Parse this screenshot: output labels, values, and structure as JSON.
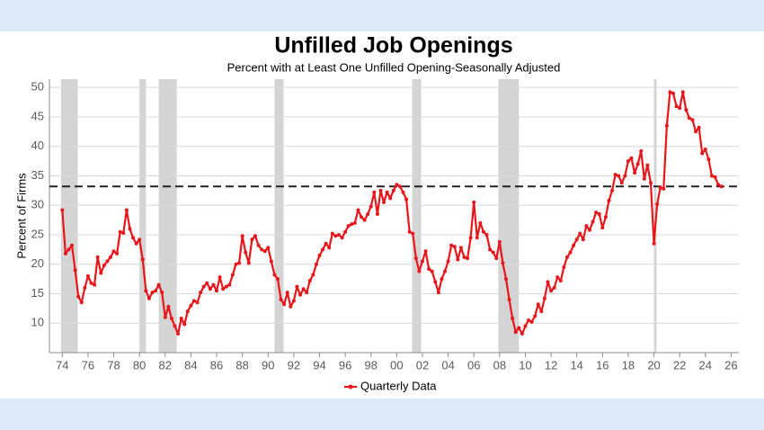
{
  "chart_data": {
    "type": "line",
    "title": "Unfilled Job Openings",
    "subtitle": "Percent with at Least One Unfilled Opening-Seasonally Adjusted",
    "y_label": "Percent of Firms",
    "x": [
      1974,
      1974.25,
      1974.5,
      1974.75,
      1975,
      1975.25,
      1975.5,
      1975.75,
      1976,
      1976.25,
      1976.5,
      1976.75,
      1977,
      1977.25,
      1977.5,
      1977.75,
      1978,
      1978.25,
      1978.5,
      1978.75,
      1979,
      1979.25,
      1979.5,
      1979.75,
      1980,
      1980.25,
      1980.5,
      1980.75,
      1981,
      1981.25,
      1981.5,
      1981.75,
      1982,
      1982.25,
      1982.5,
      1982.75,
      1983,
      1983.25,
      1983.5,
      1983.75,
      1984,
      1984.25,
      1984.5,
      1984.75,
      1985,
      1985.25,
      1985.5,
      1985.75,
      1986,
      1986.25,
      1986.5,
      1986.75,
      1987,
      1987.25,
      1987.5,
      1987.75,
      1988,
      1988.25,
      1988.5,
      1988.75,
      1989,
      1989.25,
      1989.5,
      1989.75,
      1990,
      1990.25,
      1990.5,
      1990.75,
      1991,
      1991.25,
      1991.5,
      1991.75,
      1992,
      1992.25,
      1992.5,
      1992.75,
      1993,
      1993.25,
      1993.5,
      1993.75,
      1994,
      1994.25,
      1994.5,
      1994.75,
      1995,
      1995.25,
      1995.5,
      1995.75,
      1996,
      1996.25,
      1996.5,
      1996.75,
      1997,
      1997.25,
      1997.5,
      1997.75,
      1998,
      1998.25,
      1998.5,
      1998.75,
      1999,
      1999.25,
      1999.5,
      1999.75,
      2000,
      2000.25,
      2000.5,
      2000.75,
      2001,
      2001.25,
      2001.5,
      2001.75,
      2002,
      2002.25,
      2002.5,
      2002.75,
      2003,
      2003.25,
      2003.5,
      2003.75,
      2004,
      2004.25,
      2004.5,
      2004.75,
      2005,
      2005.25,
      2005.5,
      2005.75,
      2006,
      2006.25,
      2006.5,
      2006.75,
      2007,
      2007.25,
      2007.5,
      2007.75,
      2008,
      2008.25,
      2008.5,
      2008.75,
      2009,
      2009.25,
      2009.5,
      2009.75,
      2010,
      2010.25,
      2010.5,
      2010.75,
      2011,
      2011.25,
      2011.5,
      2011.75,
      2012,
      2012.25,
      2012.5,
      2012.75,
      2013,
      2013.25,
      2013.5,
      2013.75,
      2014,
      2014.25,
      2014.5,
      2014.75,
      2015,
      2015.25,
      2015.5,
      2015.75,
      2016,
      2016.25,
      2016.5,
      2016.75,
      2017,
      2017.25,
      2017.5,
      2017.75,
      2018,
      2018.25,
      2018.5,
      2018.75,
      2019,
      2019.25,
      2019.5,
      2019.75,
      2020,
      2020.25,
      2020.5,
      2020.75,
      2021,
      2021.25,
      2021.5,
      2021.75,
      2022,
      2022.25,
      2022.5,
      2022.75,
      2023,
      2023.25,
      2023.5,
      2023.75,
      2024,
      2024.25,
      2024.5,
      2024.75,
      2025,
      2025.25
    ],
    "series": [
      {
        "name": "Quarterly Data",
        "color": "#e8161b",
        "values": [
          29.2,
          21.8,
          22.5,
          23.2,
          19,
          14.5,
          13.5,
          16,
          18,
          16.8,
          16.5,
          21.2,
          18.5,
          19.8,
          20.5,
          21.2,
          22.2,
          21.8,
          25.5,
          25.3,
          29.2,
          26,
          24.5,
          23.5,
          24.2,
          20.8,
          15.5,
          14.2,
          15.2,
          15.5,
          16.5,
          15.2,
          11,
          12.8,
          10.8,
          9.5,
          8.2,
          10.8,
          9.8,
          12,
          13,
          13.8,
          13.5,
          15.2,
          16.2,
          16.8,
          15.8,
          16.5,
          15.5,
          17.8,
          15.8,
          16.2,
          16.5,
          18.2,
          20,
          20.2,
          24.8,
          22,
          20.2,
          24.2,
          24.8,
          23.2,
          22.5,
          22.2,
          22.8,
          20.5,
          18.2,
          17.5,
          14,
          13.2,
          15.2,
          12.8,
          13.8,
          16.2,
          14.8,
          15.8,
          15.2,
          17.2,
          18.2,
          20,
          21.5,
          22.5,
          23.5,
          22.8,
          25.2,
          24.8,
          25,
          24.5,
          25.5,
          26.5,
          26.8,
          27,
          29.2,
          28,
          27.5,
          28.5,
          29.8,
          32.2,
          28.5,
          32.5,
          30.5,
          32.2,
          31.2,
          32.5,
          33.5,
          33.2,
          32.2,
          31,
          25.5,
          25.2,
          21,
          18.8,
          20.5,
          22.2,
          19.2,
          18.8,
          17,
          15.2,
          17.5,
          18.8,
          20.5,
          23.2,
          23,
          20.8,
          22.8,
          21.2,
          21,
          24.5,
          30.5,
          24.5,
          27,
          25.5,
          25,
          22.5,
          22,
          21,
          23.8,
          20.2,
          17.5,
          14,
          10.8,
          8.5,
          9.2,
          8.2,
          9.5,
          10.5,
          10.2,
          11.2,
          13.2,
          12,
          14.2,
          17,
          15.5,
          16,
          17.8,
          17.2,
          19.5,
          21.2,
          22,
          23.2,
          24.2,
          25.2,
          24.2,
          26.5,
          25.8,
          27.2,
          28.8,
          28.5,
          26.2,
          28,
          30.8,
          32.5,
          35.2,
          35,
          33.8,
          35,
          37.5,
          38,
          35.5,
          37,
          39.2,
          34.5,
          36.8,
          33.8,
          23.5,
          30.2,
          33,
          32.8,
          43.5,
          49.2,
          49,
          46.8,
          46.5,
          49.2,
          46.2,
          44.8,
          44.5,
          42.5,
          43.2,
          38.8,
          39.5,
          37.8,
          35,
          34.8,
          33.5,
          33.2
        ]
      }
    ],
    "xlim": [
      1973,
      2026.6
    ],
    "ylim": [
      5,
      51.4
    ],
    "xticks": [
      {
        "value": 1974,
        "label": "74"
      },
      {
        "value": 1976,
        "label": "76"
      },
      {
        "value": 1978,
        "label": "78"
      },
      {
        "value": 1980,
        "label": "80"
      },
      {
        "value": 1982,
        "label": "82"
      },
      {
        "value": 1984,
        "label": "84"
      },
      {
        "value": 1986,
        "label": "86"
      },
      {
        "value": 1988,
        "label": "88"
      },
      {
        "value": 1990,
        "label": "90"
      },
      {
        "value": 1992,
        "label": "92"
      },
      {
        "value": 1994,
        "label": "94"
      },
      {
        "value": 1996,
        "label": "96"
      },
      {
        "value": 1998,
        "label": "98"
      },
      {
        "value": 2000,
        "label": "00"
      },
      {
        "value": 2002,
        "label": "02"
      },
      {
        "value": 2004,
        "label": "04"
      },
      {
        "value": 2006,
        "label": "06"
      },
      {
        "value": 2008,
        "label": "08"
      },
      {
        "value": 2010,
        "label": "10"
      },
      {
        "value": 2012,
        "label": "12"
      },
      {
        "value": 2014,
        "label": "14"
      },
      {
        "value": 2016,
        "label": "16"
      },
      {
        "value": 2018,
        "label": "18"
      },
      {
        "value": 2020,
        "label": "20"
      },
      {
        "value": 2022,
        "label": "22"
      },
      {
        "value": 2024,
        "label": "24"
      },
      {
        "value": 2026,
        "label": "26"
      }
    ],
    "yticks": [
      10,
      15,
      20,
      25,
      30,
      35,
      40,
      45,
      50
    ],
    "grid": true,
    "recessions": [
      [
        1973.9,
        1975.2
      ],
      [
        1980,
        1980.5
      ],
      [
        1981.5,
        1982.9
      ],
      [
        1990.5,
        1991.2
      ],
      [
        2001.2,
        2001.9
      ],
      [
        2007.9,
        2009.5
      ],
      [
        2020,
        2020.2
      ]
    ],
    "recession_color": "#d4d4d4",
    "reference_line": 33.2,
    "legend": "bottom"
  }
}
